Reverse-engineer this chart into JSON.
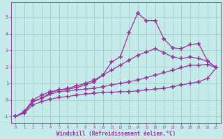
{
  "xlabel": "Windchill (Refroidissement éolien,°C)",
  "xlim": [
    -0.5,
    23.5
  ],
  "ylim": [
    -1.4,
    5.9
  ],
  "xticks": [
    0,
    1,
    2,
    3,
    4,
    5,
    6,
    7,
    8,
    9,
    10,
    11,
    12,
    13,
    14,
    15,
    16,
    17,
    18,
    19,
    20,
    21,
    22,
    23
  ],
  "yticks": [
    -1,
    0,
    1,
    2,
    3,
    4,
    5
  ],
  "background_color": "#c5eaea",
  "grid_color": "#a8d0d0",
  "line_color": "#993399",
  "marker": "+",
  "markersize": 4,
  "markeredgewidth": 1.2,
  "linewidth": 0.9,
  "series": [
    [
      -1,
      -0.8,
      -0.3,
      -0.1,
      0.05,
      0.15,
      0.2,
      0.3,
      0.35,
      0.4,
      0.45,
      0.45,
      0.5,
      0.5,
      0.55,
      0.6,
      0.65,
      0.7,
      0.8,
      0.9,
      1.0,
      1.1,
      1.3,
      1.95
    ],
    [
      -1,
      -0.75,
      -0.1,
      0.1,
      0.35,
      0.5,
      0.55,
      0.6,
      0.65,
      0.7,
      0.8,
      0.9,
      1.0,
      1.1,
      1.2,
      1.35,
      1.5,
      1.65,
      1.8,
      1.95,
      2.1,
      2.1,
      2.15,
      1.95
    ],
    [
      -1,
      -0.7,
      0.0,
      0.3,
      0.5,
      0.6,
      0.65,
      0.75,
      0.9,
      1.1,
      1.5,
      2.3,
      2.6,
      4.05,
      5.25,
      4.8,
      4.8,
      3.7,
      3.15,
      3.1,
      3.35,
      3.4,
      2.35,
      1.95
    ],
    [
      -1,
      -0.75,
      -0.1,
      0.1,
      0.45,
      0.6,
      0.7,
      0.85,
      1.0,
      1.2,
      1.5,
      1.8,
      2.1,
      2.4,
      2.7,
      2.9,
      3.1,
      2.85,
      2.6,
      2.5,
      2.6,
      2.5,
      2.35,
      1.95
    ]
  ]
}
